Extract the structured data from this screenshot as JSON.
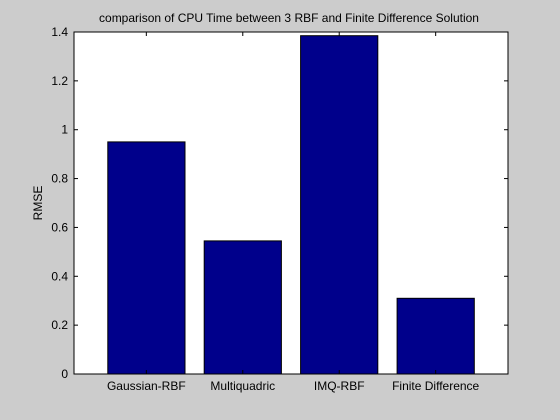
{
  "chart_data": {
    "type": "bar",
    "title": "comparison of CPU Time between 3 RBF and Finite Difference Solution",
    "xlabel": "",
    "ylabel": "RMSE",
    "categories": [
      "Gaussian-RBF",
      "Multiquadric",
      "IMQ-RBF",
      "Finite Difference"
    ],
    "values": [
      0.95,
      0.545,
      1.385,
      0.31
    ],
    "ylim": [
      0,
      1.4
    ],
    "yticks": [
      0,
      0.2,
      0.4,
      0.6,
      0.8,
      1,
      1.2,
      1.4
    ],
    "ytick_labels": [
      "0",
      "0.2",
      "0.4",
      "0.6",
      "0.8",
      "1",
      "1.2",
      "1.4"
    ],
    "bar_color": "#00008b",
    "bar_edge_color": "#000000",
    "grid": false,
    "legend": "none",
    "figure_background": "#cccccc",
    "axes_background": "#ffffff"
  }
}
